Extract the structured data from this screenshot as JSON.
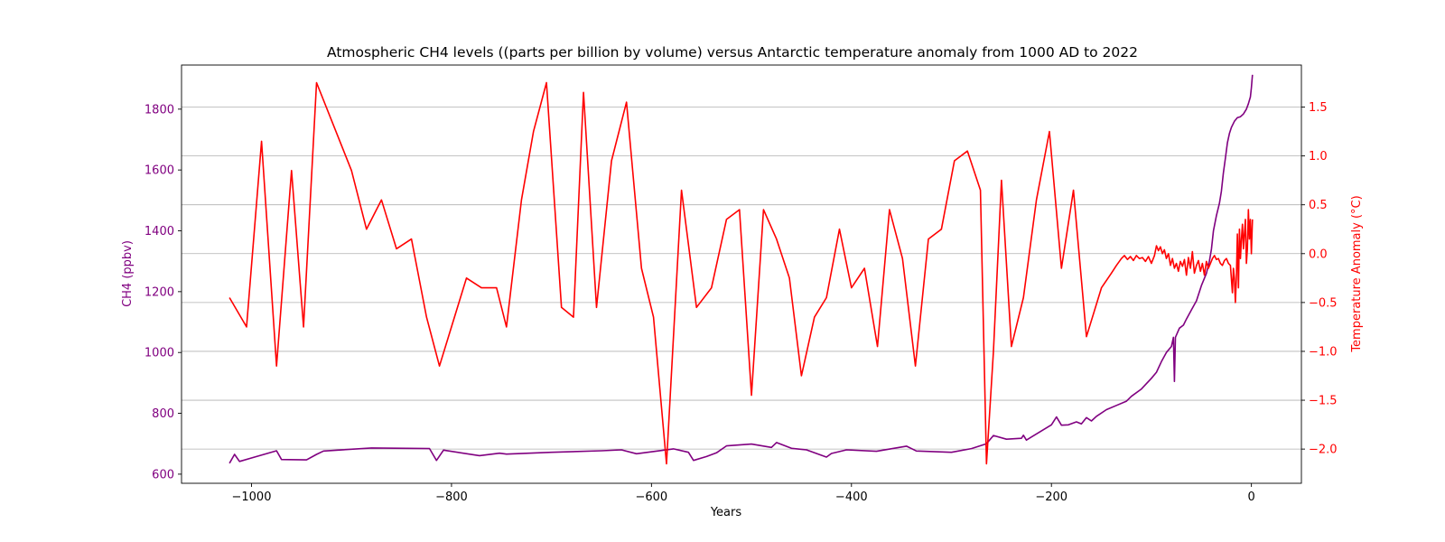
{
  "chart_data": {
    "type": "line",
    "title": "Atmospheric CH4 levels ((parts per billion by volume) versus Antarctic temperature anomaly from 1000 AD to 2022",
    "xlabel": "Years",
    "ylabel_left": "CH4 (ppbv)",
    "ylabel_right": "Temperature Anomaly (°C)",
    "xlim": [
      -1070,
      50
    ],
    "ylim_left": [
      570,
      1945
    ],
    "ylim_right": [
      -2.35,
      1.93
    ],
    "x_ticks": [
      -1000,
      -800,
      -600,
      -400,
      -200,
      0
    ],
    "x_tick_labels": [
      "−1000",
      "−800",
      "−600",
      "−400",
      "−200",
      "0"
    ],
    "y_left_ticks": [
      600,
      800,
      1000,
      1200,
      1400,
      1600,
      1800
    ],
    "y_left_tick_labels": [
      "600",
      "800",
      "1000",
      "1200",
      "1400",
      "1600",
      "1800"
    ],
    "y_right_ticks": [
      -2.0,
      -1.5,
      -1.0,
      -0.5,
      0.0,
      0.5,
      1.0,
      1.5
    ],
    "y_right_tick_labels": [
      "−2.0",
      "−1.5",
      "−1.0",
      "−0.5",
      "0.0",
      "0.5",
      "1.0",
      "1.5"
    ],
    "grid": "horizontal lines at right-axis ticks",
    "colors": {
      "ch4": "#800080",
      "temperature": "#ff0000",
      "grid": "#b0b0b0",
      "axis": "#000000"
    },
    "series": [
      {
        "axis": "left",
        "color": "#800080",
        "points": [
          [
            -1022,
            636
          ],
          [
            -1017,
            665
          ],
          [
            -1012,
            642
          ],
          [
            -975,
            677
          ],
          [
            -970,
            648
          ],
          [
            -945,
            647
          ],
          [
            -935,
            665
          ],
          [
            -928,
            676
          ],
          [
            -880,
            686
          ],
          [
            -822,
            684
          ],
          [
            -815,
            645
          ],
          [
            -808,
            679
          ],
          [
            -772,
            661
          ],
          [
            -752,
            669
          ],
          [
            -745,
            666
          ],
          [
            -700,
            672
          ],
          [
            -650,
            677
          ],
          [
            -630,
            680
          ],
          [
            -615,
            667
          ],
          [
            -578,
            683
          ],
          [
            -563,
            672
          ],
          [
            -558,
            645
          ],
          [
            -545,
            658
          ],
          [
            -535,
            670
          ],
          [
            -525,
            693
          ],
          [
            -500,
            699
          ],
          [
            -480,
            688
          ],
          [
            -475,
            704
          ],
          [
            -460,
            685
          ],
          [
            -445,
            680
          ],
          [
            -425,
            656
          ],
          [
            -420,
            668
          ],
          [
            -405,
            680
          ],
          [
            -375,
            675
          ],
          [
            -345,
            692
          ],
          [
            -335,
            676
          ],
          [
            -300,
            672
          ],
          [
            -280,
            684
          ],
          [
            -265,
            700
          ],
          [
            -258,
            727
          ],
          [
            -245,
            715
          ],
          [
            -230,
            718
          ],
          [
            -228,
            728
          ],
          [
            -225,
            712
          ],
          [
            -200,
            762
          ],
          [
            -195,
            788
          ],
          [
            -190,
            761
          ],
          [
            -183,
            762
          ],
          [
            -175,
            772
          ],
          [
            -170,
            765
          ],
          [
            -165,
            786
          ],
          [
            -160,
            775
          ],
          [
            -155,
            790
          ],
          [
            -145,
            812
          ],
          [
            -135,
            826
          ],
          [
            -125,
            840
          ],
          [
            -120,
            856
          ],
          [
            -110,
            880
          ],
          [
            -100,
            915
          ],
          [
            -95,
            935
          ],
          [
            -90,
            970
          ],
          [
            -85,
            1000
          ],
          [
            -80,
            1020
          ],
          [
            -78,
            1050
          ],
          [
            -77,
            905
          ],
          [
            -76,
            1050
          ],
          [
            -72,
            1080
          ],
          [
            -68,
            1090
          ],
          [
            -65,
            1110
          ],
          [
            -60,
            1140
          ],
          [
            -55,
            1170
          ],
          [
            -50,
            1220
          ],
          [
            -45,
            1260
          ],
          [
            -42,
            1300
          ],
          [
            -40,
            1340
          ],
          [
            -38,
            1400
          ],
          [
            -35,
            1450
          ],
          [
            -32,
            1490
          ],
          [
            -30,
            1530
          ],
          [
            -28,
            1590
          ],
          [
            -26,
            1640
          ],
          [
            -24,
            1690
          ],
          [
            -22,
            1720
          ],
          [
            -20,
            1740
          ],
          [
            -17,
            1760
          ],
          [
            -14,
            1772
          ],
          [
            -11,
            1775
          ],
          [
            -8,
            1784
          ],
          [
            -5,
            1800
          ],
          [
            -3,
            1818
          ],
          [
            -1,
            1840
          ],
          [
            0,
            1870
          ],
          [
            1,
            1913
          ]
        ]
      },
      {
        "axis": "right",
        "color": "#ff0000",
        "points": [
          [
            -1022,
            -0.45
          ],
          [
            -1005,
            -0.75
          ],
          [
            -990,
            1.15
          ],
          [
            -975,
            -1.15
          ],
          [
            -960,
            0.85
          ],
          [
            -948,
            -0.75
          ],
          [
            -935,
            1.75
          ],
          [
            -900,
            0.85
          ],
          [
            -885,
            0.25
          ],
          [
            -870,
            0.55
          ],
          [
            -855,
            0.05
          ],
          [
            -840,
            0.15
          ],
          [
            -825,
            -0.65
          ],
          [
            -812,
            -1.15
          ],
          [
            -800,
            -0.75
          ],
          [
            -785,
            -0.25
          ],
          [
            -770,
            -0.35
          ],
          [
            -755,
            -0.35
          ],
          [
            -745,
            -0.75
          ],
          [
            -730,
            0.55
          ],
          [
            -718,
            1.25
          ],
          [
            -705,
            1.75
          ],
          [
            -690,
            -0.55
          ],
          [
            -678,
            -0.65
          ],
          [
            -668,
            1.65
          ],
          [
            -655,
            -0.55
          ],
          [
            -640,
            0.95
          ],
          [
            -625,
            1.55
          ],
          [
            -610,
            -0.15
          ],
          [
            -598,
            -0.65
          ],
          [
            -585,
            -2.15
          ],
          [
            -570,
            0.65
          ],
          [
            -555,
            -0.55
          ],
          [
            -540,
            -0.35
          ],
          [
            -525,
            0.35
          ],
          [
            -512,
            0.45
          ],
          [
            -500,
            -1.45
          ],
          [
            -488,
            0.45
          ],
          [
            -475,
            0.15
          ],
          [
            -462,
            -0.25
          ],
          [
            -450,
            -1.25
          ],
          [
            -437,
            -0.65
          ],
          [
            -425,
            -0.45
          ],
          [
            -412,
            0.25
          ],
          [
            -400,
            -0.35
          ],
          [
            -387,
            -0.15
          ],
          [
            -374,
            -0.95
          ],
          [
            -362,
            0.45
          ],
          [
            -349,
            -0.05
          ],
          [
            -336,
            -1.15
          ],
          [
            -323,
            0.15
          ],
          [
            -310,
            0.25
          ],
          [
            -297,
            0.95
          ],
          [
            -284,
            1.05
          ],
          [
            -271,
            0.65
          ],
          [
            -265,
            -2.15
          ],
          [
            -258,
            -1.0
          ],
          [
            -250,
            0.75
          ],
          [
            -240,
            -0.95
          ],
          [
            -228,
            -0.45
          ],
          [
            -215,
            0.55
          ],
          [
            -202,
            1.25
          ],
          [
            -190,
            -0.15
          ],
          [
            -178,
            0.65
          ],
          [
            -165,
            -0.85
          ],
          [
            -150,
            -0.35
          ],
          [
            -140,
            -0.2
          ],
          [
            -135,
            -0.12
          ],
          [
            -130,
            -0.05
          ],
          [
            -127,
            -0.02
          ],
          [
            -124,
            -0.06
          ],
          [
            -121,
            -0.03
          ],
          [
            -118,
            -0.07
          ],
          [
            -115,
            -0.02
          ],
          [
            -112,
            -0.05
          ],
          [
            -109,
            -0.04
          ],
          [
            -106,
            -0.08
          ],
          [
            -103,
            -0.03
          ],
          [
            -100,
            -0.1
          ],
          [
            -97,
            -0.02
          ],
          [
            -95,
            0.08
          ],
          [
            -93,
            0.03
          ],
          [
            -91,
            0.07
          ],
          [
            -89,
            0.0
          ],
          [
            -87,
            0.04
          ],
          [
            -85,
            -0.05
          ],
          [
            -83,
            0.0
          ],
          [
            -81,
            -0.12
          ],
          [
            -79,
            -0.05
          ],
          [
            -77,
            -0.15
          ],
          [
            -75,
            -0.1
          ],
          [
            -73,
            -0.18
          ],
          [
            -71,
            -0.08
          ],
          [
            -69,
            -0.13
          ],
          [
            -67,
            -0.06
          ],
          [
            -65,
            -0.22
          ],
          [
            -63,
            -0.04
          ],
          [
            -61,
            -0.15
          ],
          [
            -59,
            0.02
          ],
          [
            -57,
            -0.2
          ],
          [
            -55,
            -0.12
          ],
          [
            -53,
            -0.07
          ],
          [
            -51,
            -0.18
          ],
          [
            -49,
            -0.1
          ],
          [
            -47,
            -0.22
          ],
          [
            -45,
            -0.08
          ],
          [
            -43,
            -0.15
          ],
          [
            -41,
            -0.1
          ],
          [
            -39,
            -0.05
          ],
          [
            -37,
            -0.02
          ],
          [
            -35,
            -0.06
          ],
          [
            -33,
            -0.05
          ],
          [
            -31,
            -0.1
          ],
          [
            -29,
            -0.12
          ],
          [
            -27,
            -0.07
          ],
          [
            -25,
            -0.05
          ],
          [
            -23,
            -0.1
          ],
          [
            -21,
            -0.12
          ],
          [
            -19,
            -0.4
          ],
          [
            -18,
            -0.15
          ],
          [
            -17,
            -0.25
          ],
          [
            -16,
            -0.5
          ],
          [
            -15,
            -0.25
          ],
          [
            -14,
            0.2
          ],
          [
            -13,
            -0.35
          ],
          [
            -12,
            0.25
          ],
          [
            -11,
            -0.05
          ],
          [
            -10,
            0.15
          ],
          [
            -9,
            0.3
          ],
          [
            -8,
            0.05
          ],
          [
            -7,
            0.2
          ],
          [
            -6,
            0.35
          ],
          [
            -5,
            -0.1
          ],
          [
            -4,
            0.05
          ],
          [
            -3,
            0.45
          ],
          [
            -2,
            0.15
          ],
          [
            -1,
            0.35
          ],
          [
            0,
            0.0
          ],
          [
            1,
            0.35
          ]
        ]
      }
    ]
  }
}
